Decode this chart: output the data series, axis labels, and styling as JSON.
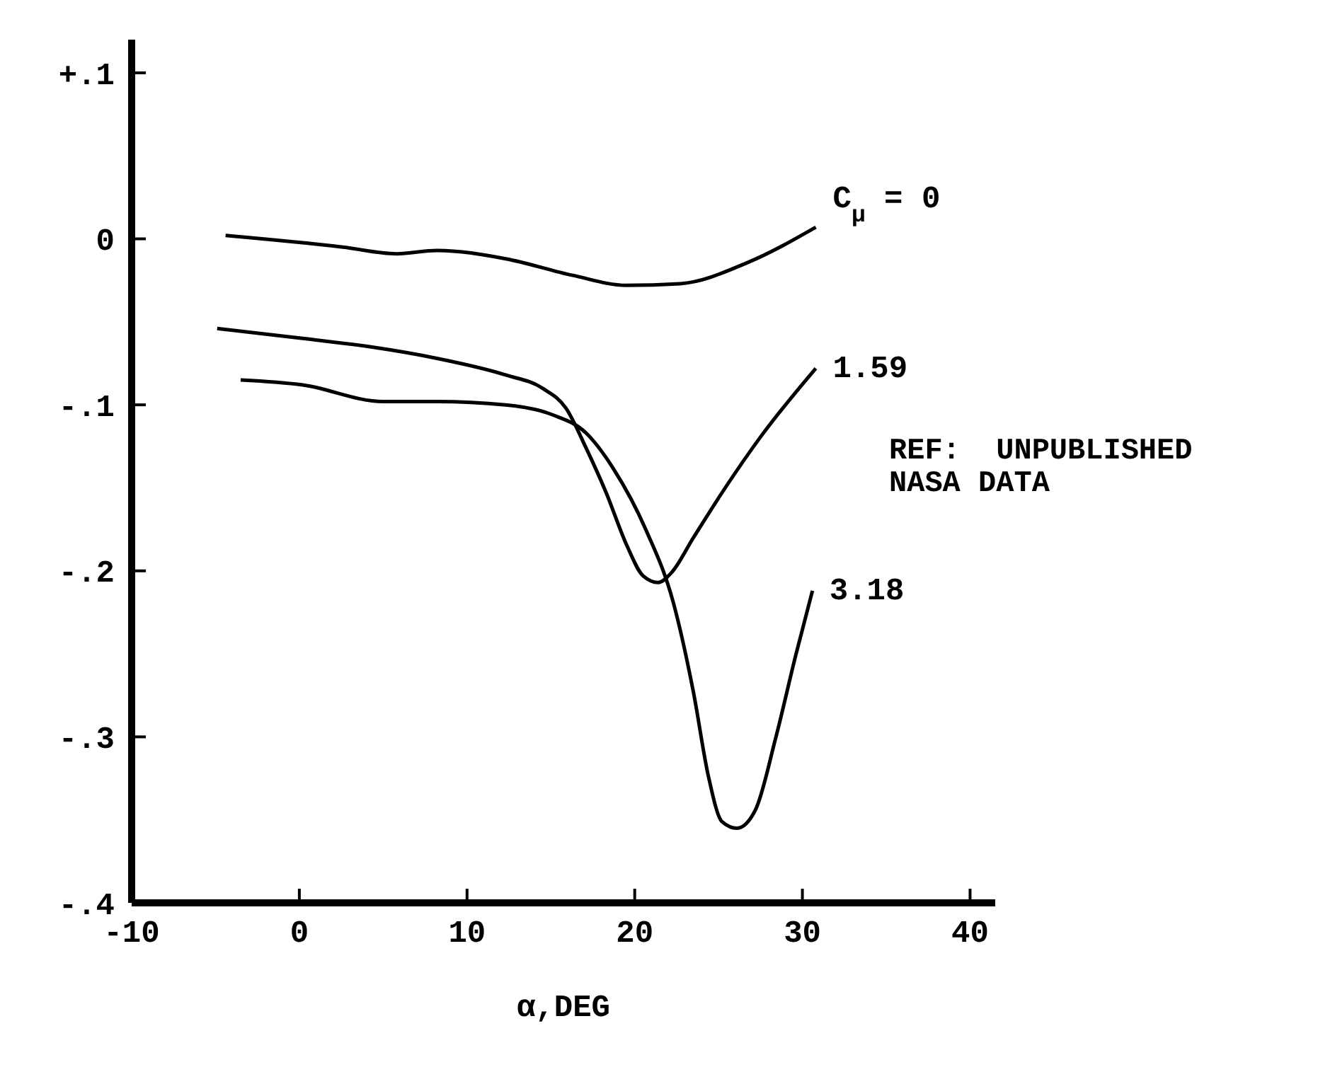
{
  "chart_data": {
    "type": "line",
    "xlabel": "α,DEG",
    "annotations": [
      "REF:  UNPUBLISHED\nNASA DATA"
    ],
    "xlim": [
      -10,
      41.5
    ],
    "xticks": [
      -10,
      0,
      10,
      20,
      30,
      40
    ],
    "ylim": [
      -0.4,
      0.12
    ],
    "yticks": [
      {
        "value": 0.1,
        "label": "+.1"
      },
      {
        "value": 0,
        "label": "0"
      },
      {
        "value": -0.1,
        "label": "-.1"
      },
      {
        "value": -0.2,
        "label": "-.2"
      },
      {
        "value": -0.3,
        "label": "-.3"
      },
      {
        "value": -0.4,
        "label": "-.4"
      }
    ],
    "grid": false,
    "marker": "none",
    "line_style": "solid",
    "series": [
      {
        "name": "C$_{μ}$ = 0",
        "color": "#000000",
        "x": [
          -4.4,
          2.6,
          5.8,
          8.2,
          12.3,
          16.3,
          19.5,
          22.7,
          26.8,
          30.8
        ],
        "values": [
          0.002,
          -0.005,
          -0.009,
          -0.007,
          -0.012,
          -0.022,
          -0.028,
          -0.027,
          -0.014,
          0.007
        ]
      },
      {
        "name": "1.59",
        "color": "#000000",
        "x": [
          -4.9,
          0.2,
          4.2,
          8.2,
          12.3,
          14.5,
          15.9,
          17.1,
          18.3,
          19.5,
          20.5,
          21.4,
          22.2,
          23.5,
          25.2,
          27.6,
          30.8
        ],
        "values": [
          -0.054,
          -0.06,
          -0.065,
          -0.072,
          -0.082,
          -0.09,
          -0.102,
          -0.126,
          -0.153,
          -0.184,
          -0.203,
          -0.207,
          -0.201,
          -0.18,
          -0.153,
          -0.118,
          -0.078
        ]
      },
      {
        "name": "3.18",
        "color": "#000000",
        "x": [
          -3.5,
          0.2,
          5.0,
          8.2,
          12.3,
          15.1,
          17.1,
          18.7,
          20.7,
          22.3,
          23.5,
          24.4,
          25.2,
          26.1,
          27.2,
          28.4,
          29.6,
          30.6
        ],
        "values": [
          -0.085,
          -0.088,
          -0.098,
          -0.098,
          -0.1,
          -0.106,
          -0.117,
          -0.138,
          -0.176,
          -0.219,
          -0.273,
          -0.324,
          -0.351,
          -0.355,
          -0.344,
          -0.301,
          -0.251,
          -0.212
        ]
      }
    ]
  }
}
